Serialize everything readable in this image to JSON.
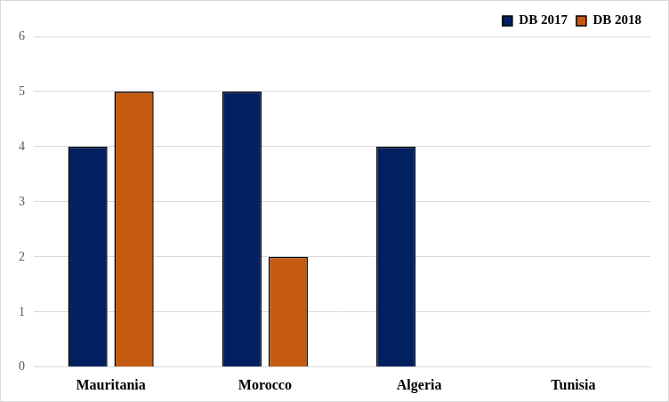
{
  "chart_data": {
    "type": "bar",
    "categories": [
      "Mauritania",
      "Morocco",
      "Algeria",
      "Tunisia"
    ],
    "series": [
      {
        "name": "DB 2017",
        "color": "#002060",
        "values": [
          4,
          5,
          4,
          0
        ]
      },
      {
        "name": "DB 2018",
        "color": "#c55a11",
        "values": [
          5,
          2,
          0,
          0
        ]
      }
    ],
    "ylim": [
      0,
      6
    ],
    "yticks": [
      0,
      1,
      2,
      3,
      4,
      5,
      6
    ],
    "grid": true,
    "legend": "top-right"
  }
}
